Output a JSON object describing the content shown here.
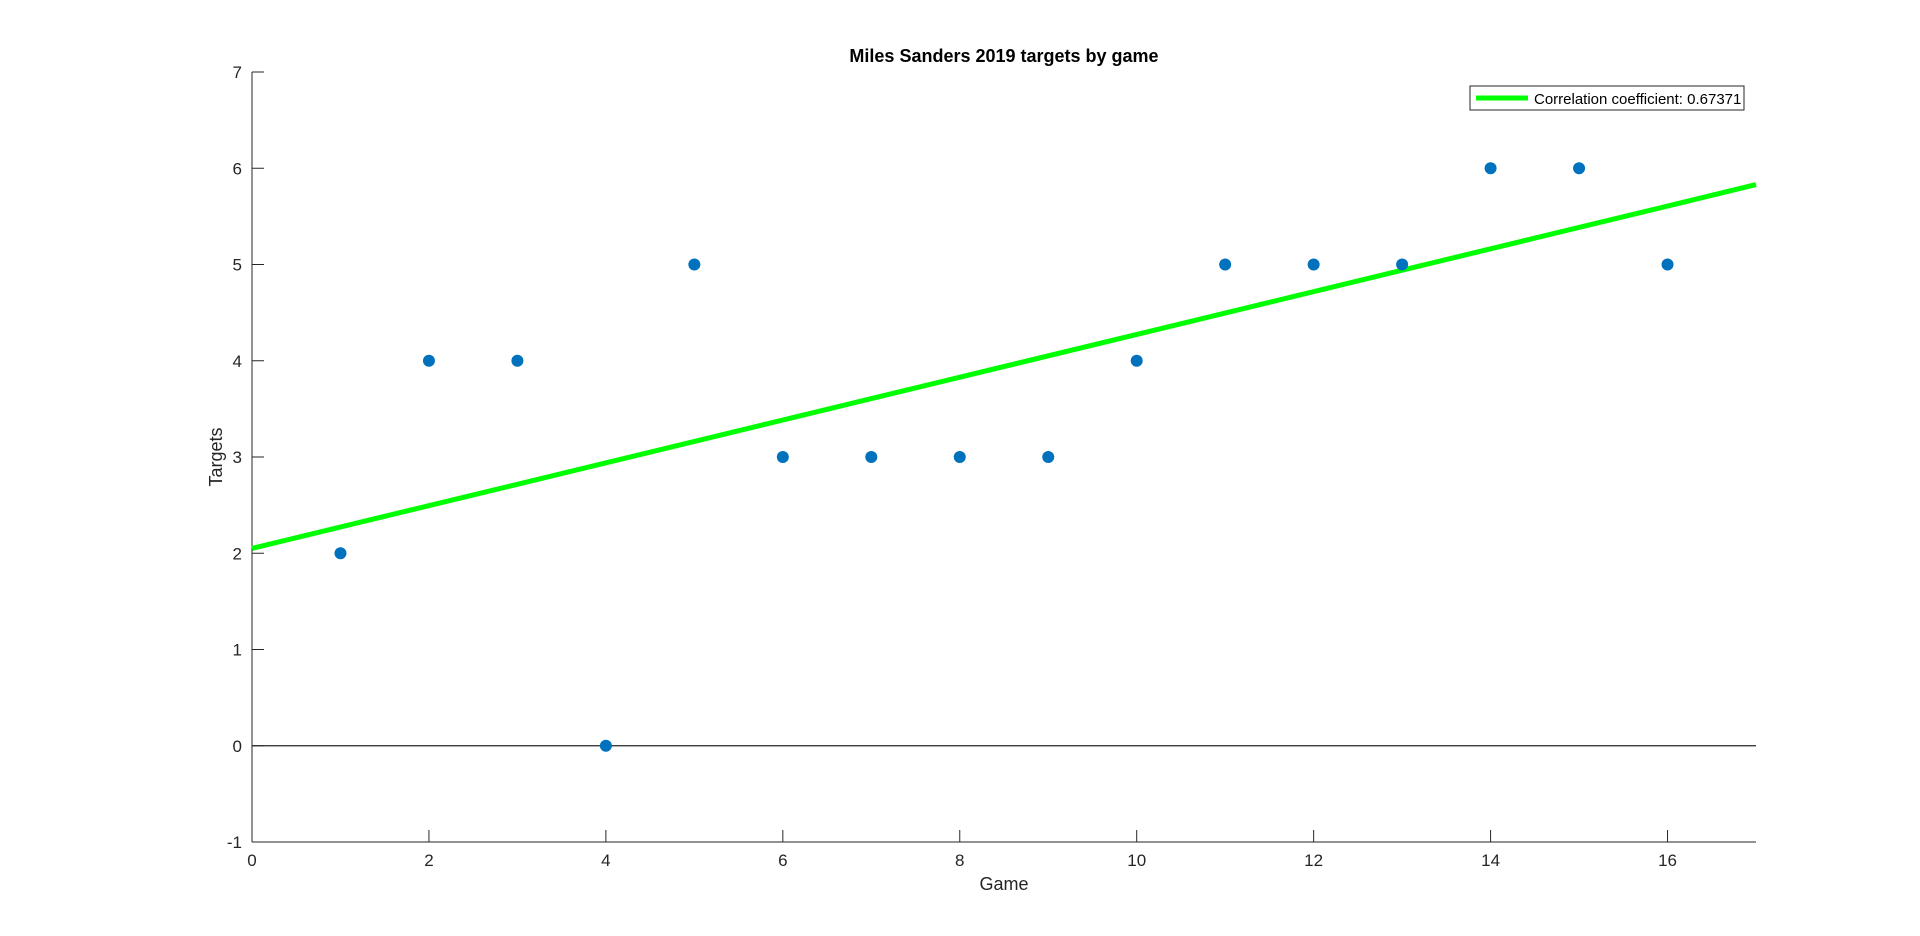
{
  "chart_data": {
    "type": "scatter",
    "title": "Miles Sanders 2019 targets by game",
    "xlabel": "Game",
    "ylabel": "Targets",
    "xlim": [
      0,
      17
    ],
    "ylim": [
      -1,
      7
    ],
    "xticks": [
      0,
      2,
      4,
      6,
      8,
      10,
      12,
      14,
      16
    ],
    "yticks": [
      -1,
      0,
      1,
      2,
      3,
      4,
      5,
      6,
      7
    ],
    "grid": false,
    "zero_line": true,
    "series": [
      {
        "type": "scatter",
        "color": "#0072BD",
        "x": [
          1,
          2,
          3,
          4,
          5,
          6,
          7,
          8,
          9,
          10,
          11,
          12,
          13,
          14,
          15,
          16
        ],
        "y": [
          2,
          4,
          4,
          0,
          5,
          3,
          3,
          3,
          3,
          4,
          5,
          5,
          5,
          6,
          6,
          5
        ]
      },
      {
        "type": "line",
        "name": "Correlation coefficient: 0.67371",
        "color": "#00FF00",
        "x": [
          0,
          17
        ],
        "y": [
          2.05,
          5.83
        ]
      }
    ],
    "legend": {
      "position": "top-right",
      "entries": [
        "Correlation coefficient: 0.67371"
      ]
    }
  }
}
